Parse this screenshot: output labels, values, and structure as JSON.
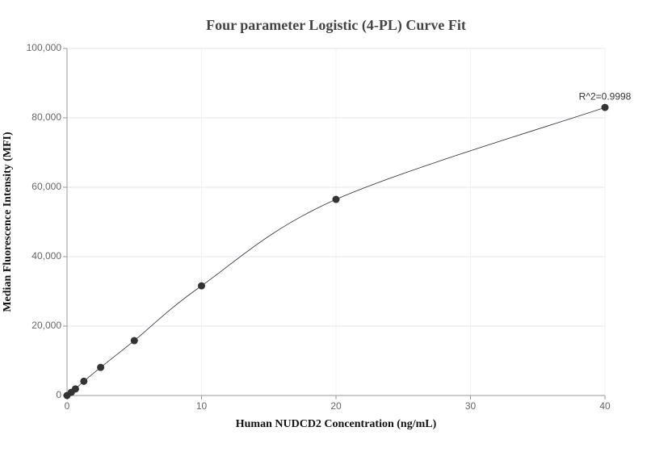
{
  "chart_data": {
    "type": "scatter-line",
    "title": "Four parameter Logistic (4-PL) Curve Fit",
    "x_label": "Human NUDCD2 Concentration (ng/mL)",
    "y_label": "Median Fluorescence Intensity (MFI)",
    "annotation": "R^2=0.9998",
    "x": [
      0,
      0.3125,
      0.625,
      1.25,
      2.5,
      5,
      10,
      20,
      40
    ],
    "series": [
      {
        "color": "#333333",
        "values": [
          0,
          900,
          1900,
          4100,
          8100,
          15800,
          31600,
          56500,
          83000
        ]
      }
    ],
    "xlim": [
      0,
      40
    ],
    "xticks": [
      0,
      10,
      20,
      30,
      40
    ],
    "ylim": [
      0,
      100000
    ],
    "yticks": [
      {
        "value": 0,
        "label": "0"
      },
      {
        "value": 20000,
        "label": "20,000"
      },
      {
        "value": 40000,
        "label": "40,000"
      },
      {
        "value": 60000,
        "label": "60,000"
      },
      {
        "value": 80000,
        "label": "80,000"
      },
      {
        "value": 100000,
        "label": "100,000"
      }
    ],
    "grid": true
  }
}
